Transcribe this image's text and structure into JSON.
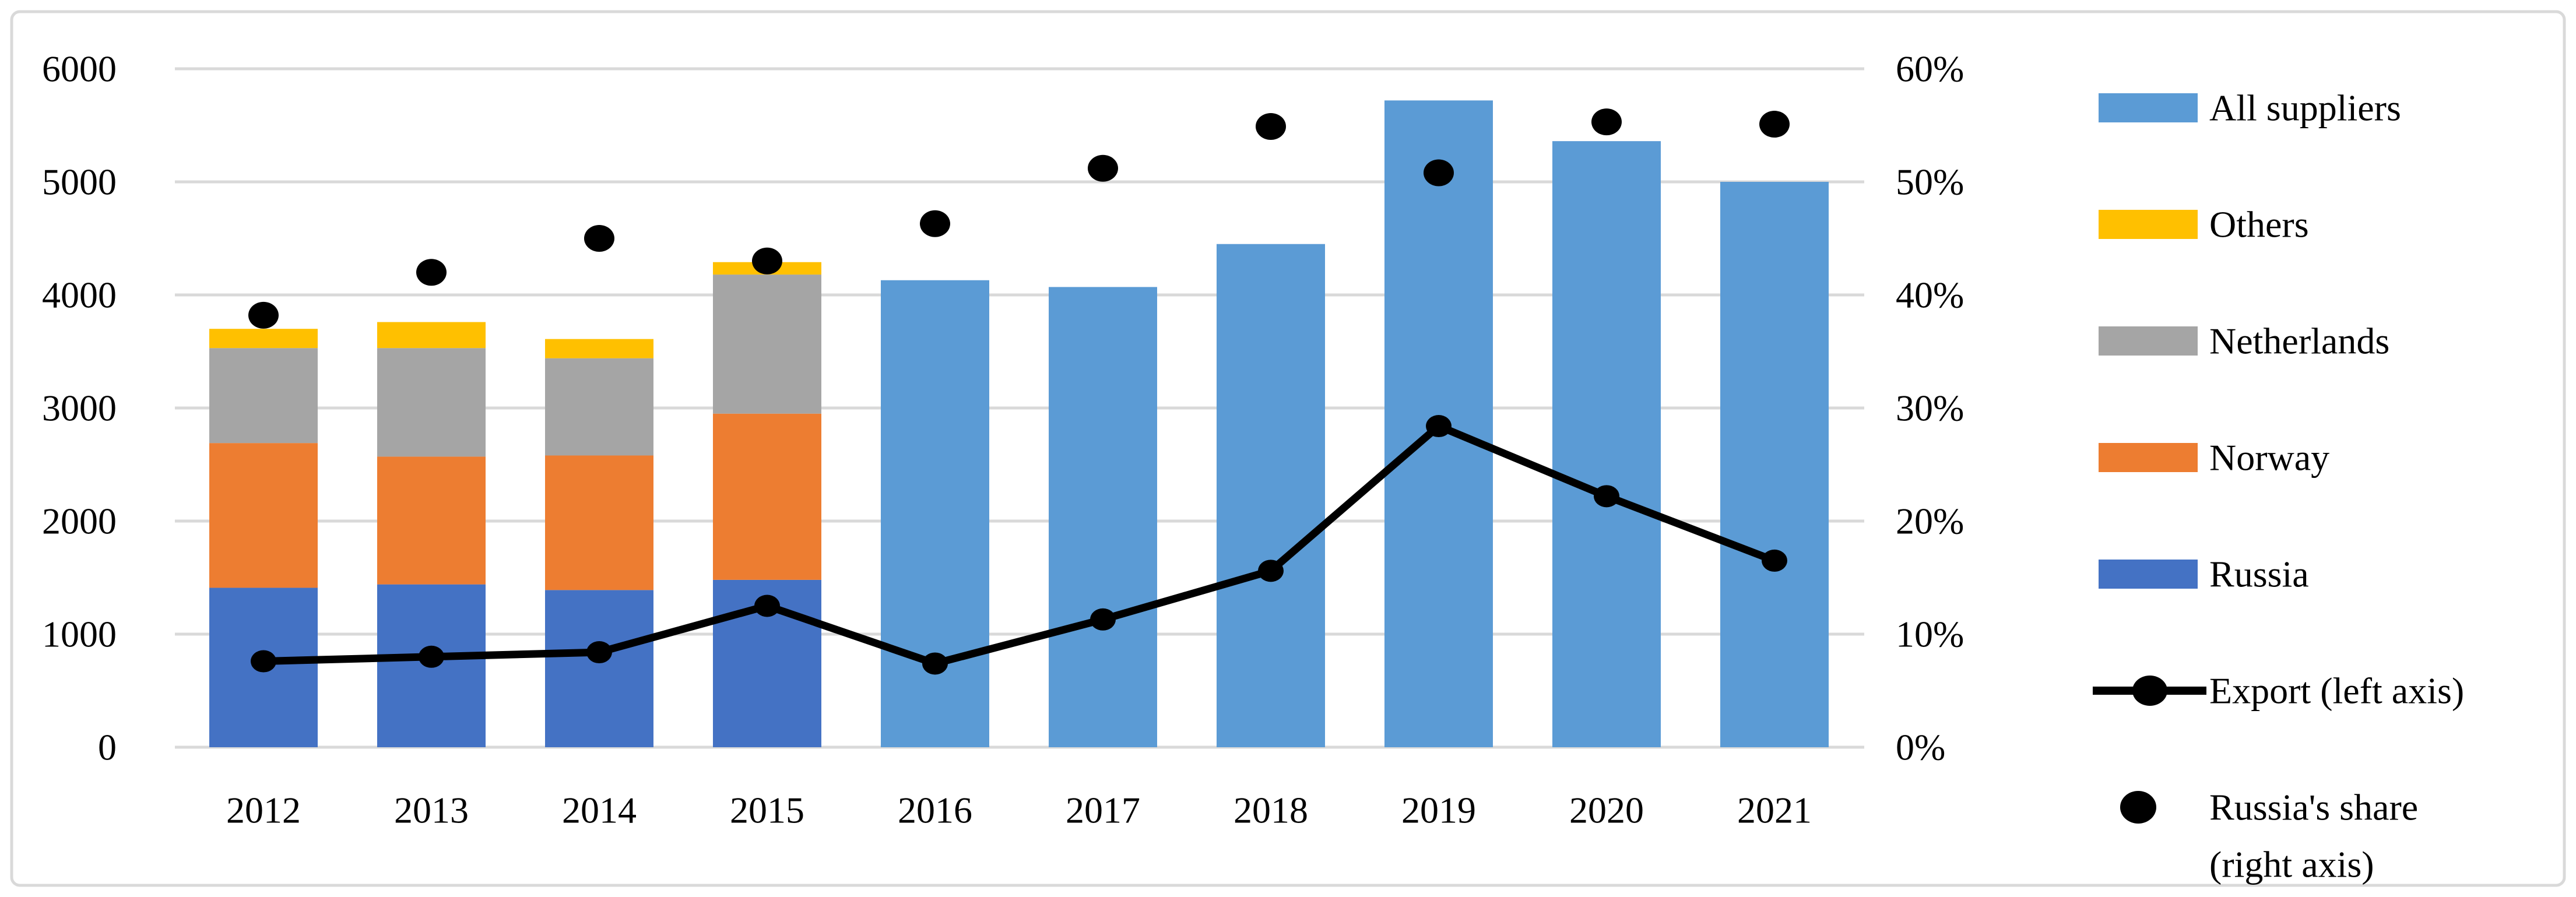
{
  "chart_data": {
    "type": "bar",
    "subtype": "stacked-bar + single bars + line, dual axis combo",
    "categories": [
      "2012",
      "2013",
      "2014",
      "2015",
      "2016",
      "2017",
      "2018",
      "2019",
      "2020",
      "2021"
    ],
    "left_axis": {
      "min": 0,
      "max": 6000,
      "tick_values": [
        0,
        1000,
        2000,
        3000,
        4000,
        5000,
        6000
      ],
      "tick_labels": [
        "0",
        "1000",
        "2000",
        "3000",
        "4000",
        "5000",
        "6000"
      ],
      "grid": true
    },
    "right_axis": {
      "min": 0,
      "max": 60,
      "tick_values": [
        0,
        10,
        20,
        30,
        40,
        50,
        60
      ],
      "tick_labels": [
        "0%",
        "10%",
        "20%",
        "30%",
        "40%",
        "50%",
        "60%"
      ]
    },
    "stacked_series": [
      {
        "name": "Russia",
        "color": "#4472C4",
        "values": [
          1410,
          1440,
          1390,
          1480,
          null,
          null,
          null,
          null,
          null,
          null
        ]
      },
      {
        "name": "Norway",
        "color": "#ED7D31",
        "values": [
          1280,
          1130,
          1190,
          1470,
          null,
          null,
          null,
          null,
          null,
          null
        ]
      },
      {
        "name": "Netherlands",
        "color": "#A5A5A5",
        "values": [
          840,
          960,
          860,
          1230,
          null,
          null,
          null,
          null,
          null,
          null
        ]
      },
      {
        "name": "Others",
        "color": "#FFC000",
        "values": [
          170,
          230,
          170,
          110,
          null,
          null,
          null,
          null,
          null,
          null
        ]
      }
    ],
    "all_suppliers": {
      "name": "All suppliers",
      "color": "#5B9BD5",
      "values": [
        null,
        null,
        null,
        null,
        4130,
        4070,
        4450,
        5720,
        5360,
        5000
      ]
    },
    "export_line": {
      "name": "Export (left axis)",
      "axis": "left",
      "color": "#000000",
      "values": [
        760,
        800,
        840,
        1250,
        740,
        1130,
        1560,
        2840,
        2220,
        1650
      ]
    },
    "russia_share_dots": {
      "name": "Russia's share (right axis)",
      "axis": "right",
      "color": "#000000",
      "values_percent": [
        38.2,
        42.0,
        45.0,
        43.0,
        46.3,
        51.2,
        54.9,
        50.8,
        55.3,
        55.1
      ]
    },
    "legend_position": "right",
    "legend": [
      {
        "type": "swatch",
        "color": "#5B9BD5",
        "label": "All suppliers"
      },
      {
        "type": "swatch",
        "color": "#FFC000",
        "label": "Others"
      },
      {
        "type": "swatch",
        "color": "#A5A5A5",
        "label": "Netherlands"
      },
      {
        "type": "swatch",
        "color": "#ED7D31",
        "label": "Norway"
      },
      {
        "type": "swatch",
        "color": "#4472C4",
        "label": "Russia"
      },
      {
        "type": "line",
        "color": "#000000",
        "label": "Export (left axis)"
      },
      {
        "type": "dot",
        "color": "#000000",
        "label": "Russia's share",
        "label2": "(right axis)"
      }
    ],
    "colors": {
      "gridline": "#D9D9D9",
      "border": "#D9D9D9",
      "background": "#FFFFFF",
      "line_and_dots": "#000000"
    }
  }
}
